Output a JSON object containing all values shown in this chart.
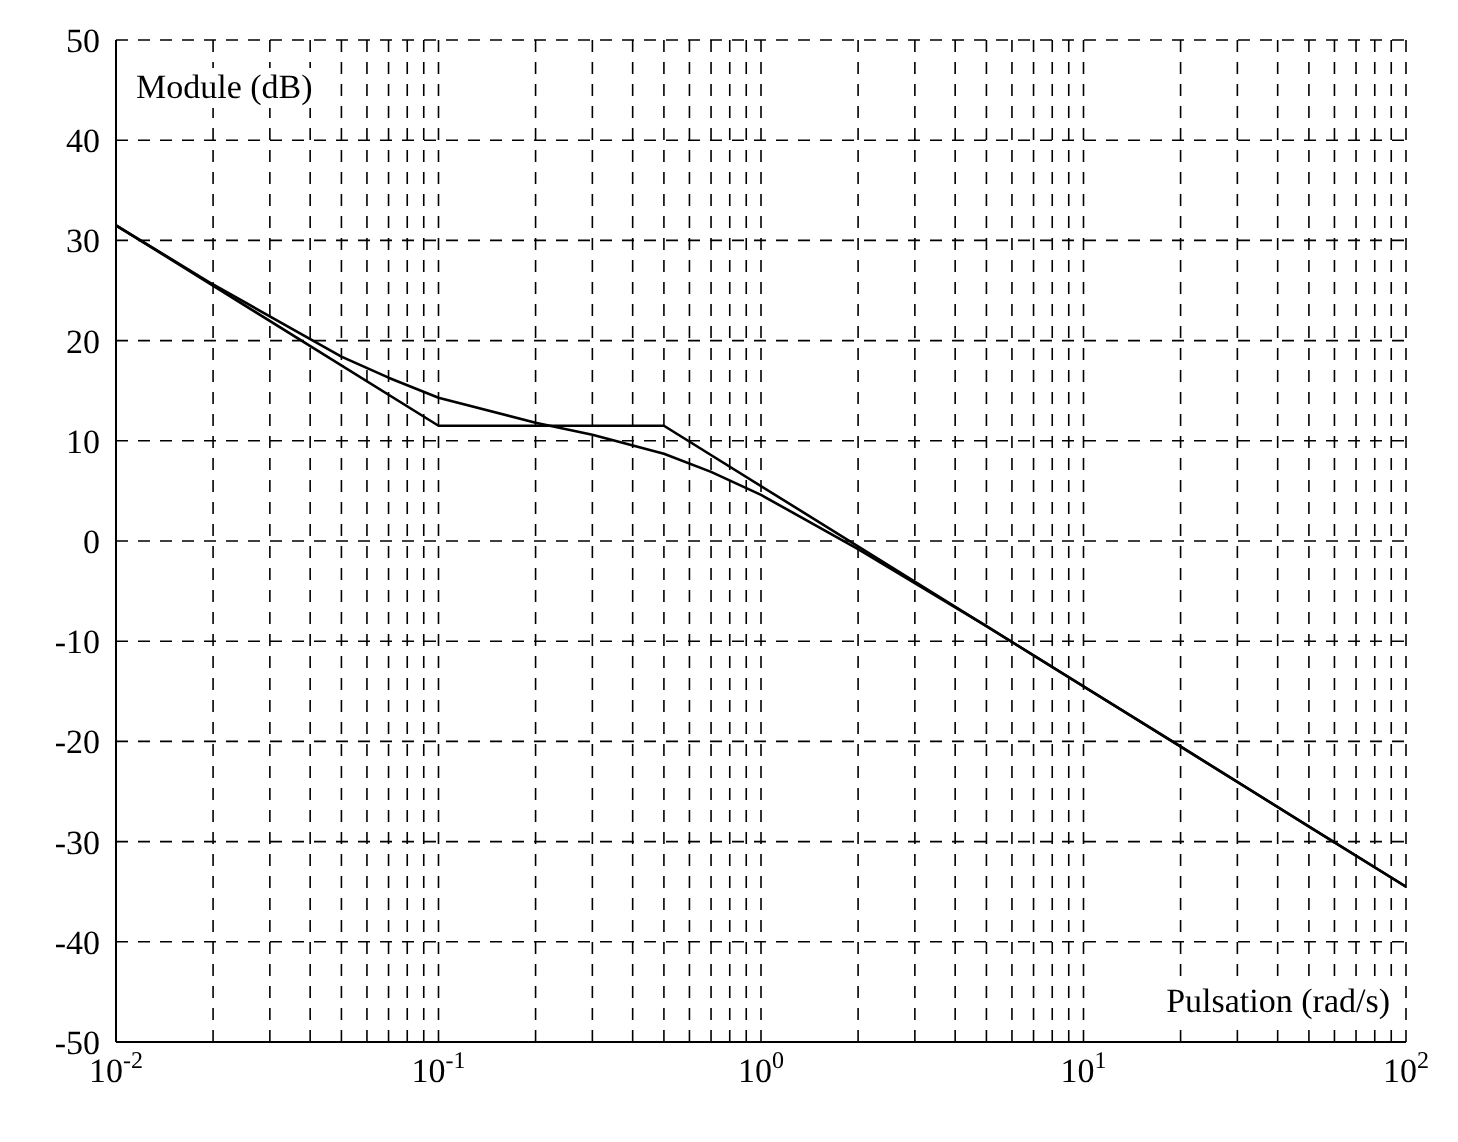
{
  "chart_data": {
    "type": "line",
    "xlabel": "Pulsation (rad/s)",
    "ylabel": "Module (dB)",
    "log": "x",
    "grid": true,
    "marker": "none",
    "line_style": "solid",
    "legend": false,
    "xlim": [
      0.01,
      100
    ],
    "ylim": [
      -50,
      50
    ],
    "xticks": [
      {
        "value": 0.01,
        "label": "10$^{-2}$"
      },
      {
        "value": 0.02,
        "label": null
      },
      {
        "value": 0.03,
        "label": null
      },
      {
        "value": 0.04,
        "label": null
      },
      {
        "value": 0.05,
        "label": null
      },
      {
        "value": 0.06,
        "label": null
      },
      {
        "value": 0.07,
        "label": null
      },
      {
        "value": 0.08,
        "label": null
      },
      {
        "value": 0.09,
        "label": null
      },
      {
        "value": 0.1,
        "label": "10$^{-1}$"
      },
      {
        "value": 0.2,
        "label": null
      },
      {
        "value": 0.3,
        "label": null
      },
      {
        "value": 0.4,
        "label": null
      },
      {
        "value": 0.5,
        "label": null
      },
      {
        "value": 0.6,
        "label": null
      },
      {
        "value": 0.7,
        "label": null
      },
      {
        "value": 0.8,
        "label": null
      },
      {
        "value": 0.9,
        "label": null
      },
      {
        "value": 1,
        "label": "10$^{0}$"
      },
      {
        "value": 2,
        "label": null
      },
      {
        "value": 3,
        "label": null
      },
      {
        "value": 4,
        "label": null
      },
      {
        "value": 5,
        "label": null
      },
      {
        "value": 6,
        "label": null
      },
      {
        "value": 7,
        "label": null
      },
      {
        "value": 8,
        "label": null
      },
      {
        "value": 9,
        "label": null
      },
      {
        "value": 10,
        "label": "10$^{1}$"
      },
      {
        "value": 20,
        "label": null
      },
      {
        "value": 30,
        "label": null
      },
      {
        "value": 40,
        "label": null
      },
      {
        "value": 50,
        "label": null
      },
      {
        "value": 60,
        "label": null
      },
      {
        "value": 70,
        "label": null
      },
      {
        "value": 80,
        "label": null
      },
      {
        "value": 90,
        "label": null
      },
      {
        "value": 100,
        "label": "10$^{2}$"
      }
    ],
    "yticks": [
      -50,
      -40,
      -30,
      -20,
      -10,
      0,
      10,
      20,
      30,
      40,
      50
    ],
    "series": [
      {
        "color": "#000000",
        "x": [
          0.01,
          0.1,
          0.5,
          100
        ],
        "values": [
          31.5,
          11.5,
          11.5,
          -34.5
        ]
      },
      {
        "color": "#000000",
        "x": [
          0.01,
          0.02,
          0.05,
          0.07,
          0.1,
          0.2,
          0.3,
          0.5,
          0.7,
          1,
          2,
          5,
          10,
          20,
          50,
          100
        ],
        "values": [
          31.5,
          25.6,
          18.4,
          16.3,
          14.3,
          11.8,
          10.6,
          8.7,
          6.9,
          4.6,
          -0.8,
          -8.5,
          -14.5,
          -20.5,
          -28.5,
          -34.5
        ]
      }
    ]
  }
}
